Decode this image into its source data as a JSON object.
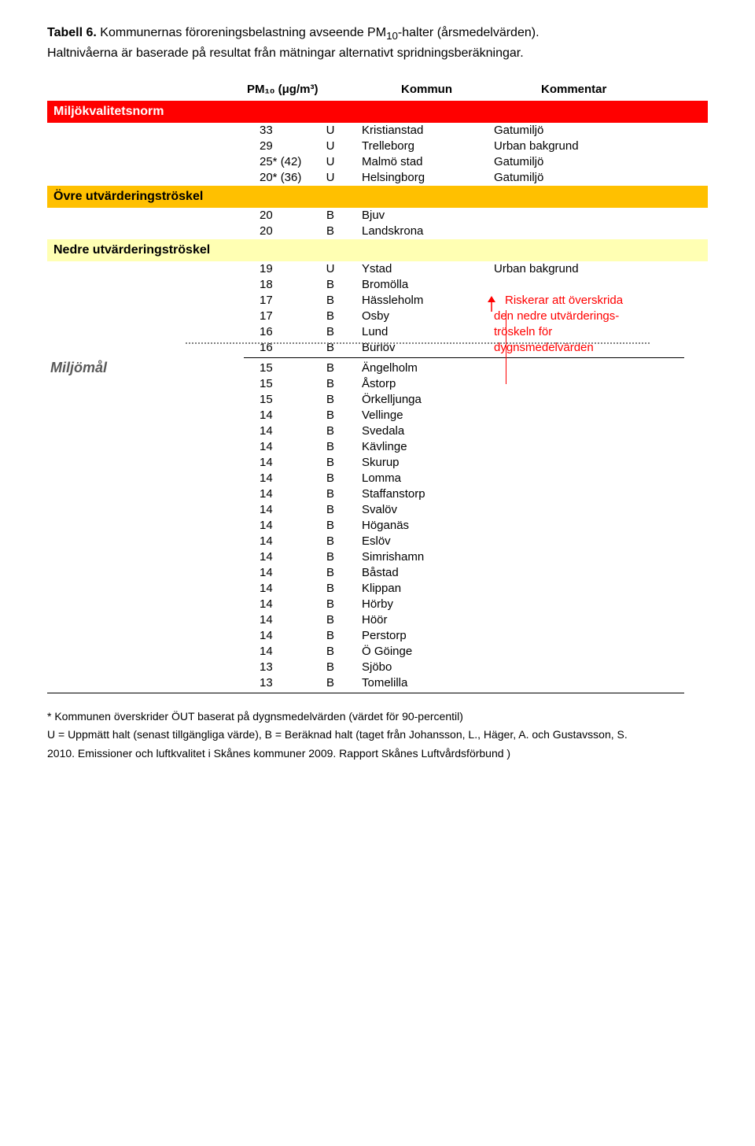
{
  "title": {
    "line1_bold": "Tabell 6.",
    "line1_rest": " Kommunernas föroreningsbelastning avseende PM",
    "sub10": "10",
    "line1_end": "-halter (årsmedelvärden).",
    "line2": "Haltnivåerna är baserade på resultat från mätningar alternativt spridningsberäkningar."
  },
  "columns": {
    "pm_label_html": "PM₁₀ (μg/m³)",
    "kommun": "Kommun",
    "kommentar": "Kommentar"
  },
  "bands": {
    "milj_norm": "Miljökvalitetsnorm",
    "ovre": "Övre utvärderingströskel",
    "nedre": "Nedre utvärderingströskel",
    "miljomal": "Miljömål"
  },
  "section1": [
    {
      "v": "33",
      "t": "U",
      "k": "Kristianstad",
      "c": "Gatumiljö"
    },
    {
      "v": "29",
      "t": "U",
      "k": "Trelleborg",
      "c": "Urban bakgrund"
    },
    {
      "v": "25* (42)",
      "t": "U",
      "k": "Malmö stad",
      "c": "Gatumiljö"
    },
    {
      "v": "20* (36)",
      "t": "U",
      "k": "Helsingborg",
      "c": "Gatumiljö"
    }
  ],
  "section2": [
    {
      "v": "20",
      "t": "B",
      "k": "Bjuv",
      "c": ""
    },
    {
      "v": "20",
      "t": "B",
      "k": "Landskrona",
      "c": ""
    }
  ],
  "section3": [
    {
      "v": "19",
      "t": "U",
      "k": "Ystad",
      "c": "Urban bakgrund"
    },
    {
      "v": "18",
      "t": "B",
      "k": "Bromölla",
      "c": ""
    },
    {
      "v": "17",
      "t": "B",
      "k": "Hässleholm",
      "c": "Riskerar att överskrida",
      "red": true,
      "arrow": true
    },
    {
      "v": "17",
      "t": "B",
      "k": "Osby",
      "c": "den nedre utvärderings-",
      "red": true
    },
    {
      "v": "16",
      "t": "B",
      "k": "Lund",
      "c": "tröskeln för",
      "red": true
    },
    {
      "v": "16",
      "t": "B",
      "k": "Burlöv",
      "c": "dygnsmedelvärden",
      "red": true
    }
  ],
  "section4": [
    {
      "v": "15",
      "t": "B",
      "k": "Ängelholm"
    },
    {
      "v": "15",
      "t": "B",
      "k": "Åstorp"
    },
    {
      "v": "15",
      "t": "B",
      "k": "Örkelljunga"
    },
    {
      "v": "14",
      "t": "B",
      "k": "Vellinge"
    },
    {
      "v": "14",
      "t": "B",
      "k": "Svedala"
    },
    {
      "v": "14",
      "t": "B",
      "k": "Kävlinge"
    },
    {
      "v": "14",
      "t": "B",
      "k": "Skurup"
    },
    {
      "v": "14",
      "t": "B",
      "k": "Lomma"
    },
    {
      "v": "14",
      "t": "B",
      "k": "Staffanstorp"
    },
    {
      "v": "14",
      "t": "B",
      "k": "Svalöv"
    },
    {
      "v": "14",
      "t": "B",
      "k": "Höganäs"
    },
    {
      "v": "14",
      "t": "B",
      "k": "Eslöv"
    },
    {
      "v": "14",
      "t": "B",
      "k": "Simrishamn"
    },
    {
      "v": "14",
      "t": "B",
      "k": "Båstad"
    },
    {
      "v": "14",
      "t": "B",
      "k": "Klippan"
    },
    {
      "v": "14",
      "t": "B",
      "k": "Hörby"
    },
    {
      "v": "14",
      "t": "B",
      "k": "Höör"
    },
    {
      "v": "14",
      "t": "B",
      "k": "Perstorp"
    },
    {
      "v": "14",
      "t": "B",
      "k": "Ö Göinge"
    },
    {
      "v": "13",
      "t": "B",
      "k": "Sjöbo"
    },
    {
      "v": "13",
      "t": "B",
      "k": "Tomelilla"
    }
  ],
  "footnotes": {
    "f1": "* Kommunen överskrider ÖUT baserat på dygnsmedelvärden (värdet för 90-percentil)",
    "f2": "U = Uppmätt halt (senast tillgängliga värde), B = Beräknad halt (taget från Johansson, L., Häger, A. och Gustavsson, S.",
    "f3": "2010. Emissioner och luftkvalitet i Skånes kommuner 2009. Rapport Skånes Luftvårdsförbund )"
  },
  "colors": {
    "red_band": "#ff0000",
    "orange_band": "#ffc000",
    "yellow_band": "#ffffb3",
    "red_text": "#ff0000",
    "grey_text": "#595959"
  }
}
